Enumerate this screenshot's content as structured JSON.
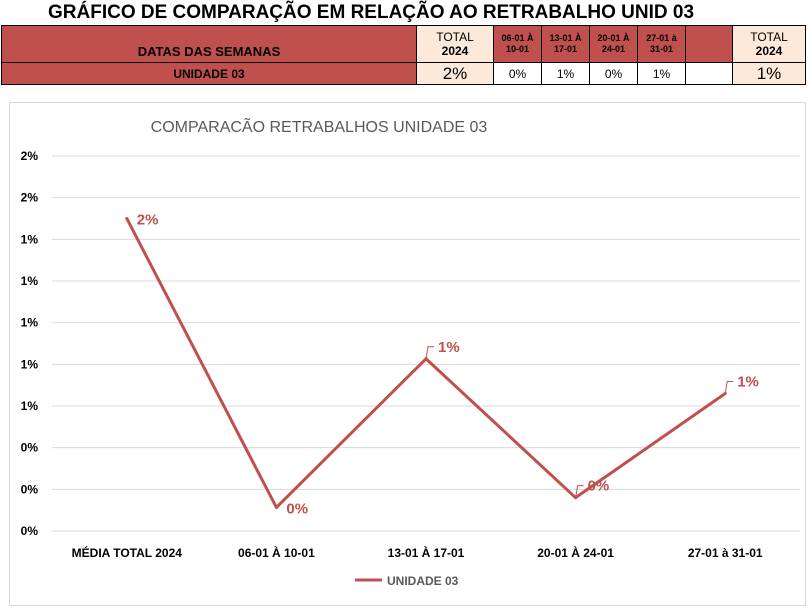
{
  "title": "GRÁFICO DE COMPARAÇÃO EM RELAÇÃO AO RETRABALHO UNID 03",
  "table": {
    "header_label": "DATAS DAS SEMANAS",
    "total_header_line1": "TOTAL",
    "total_header_line2": "2024",
    "weeks": [
      {
        "line1": "06-01 À",
        "line2": "10-01"
      },
      {
        "line1": "13-01 À",
        "line2": "17-01"
      },
      {
        "line1": "20-01 À",
        "line2": "24-01"
      },
      {
        "line1": "27-01 à",
        "line2": "31-01"
      }
    ],
    "total_header2_line1": "TOTAL",
    "total_header2_line2": "2024",
    "row_label": "UNIDADE 03",
    "total_value": "2%",
    "week_values": [
      "0%",
      "1%",
      "0%",
      "1%"
    ],
    "total2_value": "1%"
  },
  "chart_data": {
    "type": "line",
    "title": "COMPARACÃO RETRABALHOS UNIDADE 03",
    "categories": [
      "MÉDIA TOTAL 2024",
      "06-01 À 10-01",
      "13-01 À 17-01",
      "20-01 À 24-01",
      "27-01 à 31-01"
    ],
    "series": [
      {
        "name": "UNIDADE 03",
        "values": [
          0.0225,
          0.0017,
          0.0124,
          0.0024,
          0.0099
        ],
        "data_labels": [
          "2%",
          "0%",
          "1%",
          "0%",
          "1%"
        ],
        "color": "#c0504d"
      }
    ],
    "y_tick_labels": [
      "0%",
      "0%",
      "0%",
      "1%",
      "1%",
      "1%",
      "1%",
      "1%",
      "2%",
      "2%"
    ],
    "ylim": [
      0,
      0.027
    ],
    "grid": true,
    "legend_position": "bottom"
  },
  "colors": {
    "accent": "#c0504d",
    "light": "#fde9d9"
  }
}
